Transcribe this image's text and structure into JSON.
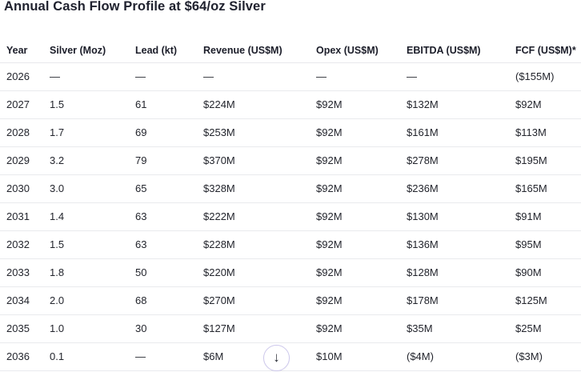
{
  "title": "Annual Cash Flow Profile at $64/oz Silver",
  "table": {
    "columns": [
      "Year",
      "Silver (Moz)",
      "Lead (kt)",
      "Revenue (US$M)",
      "Opex (US$M)",
      "EBITDA (US$M)",
      "FCF (US$M)*"
    ],
    "rows": [
      [
        "2026",
        "—",
        "—",
        "—",
        "—",
        "—",
        "($155M)"
      ],
      [
        "2027",
        "1.5",
        "61",
        "$224M",
        "$92M",
        "$132M",
        "$92M"
      ],
      [
        "2028",
        "1.7",
        "69",
        "$253M",
        "$92M",
        "$161M",
        "$113M"
      ],
      [
        "2029",
        "3.2",
        "79",
        "$370M",
        "$92M",
        "$278M",
        "$195M"
      ],
      [
        "2030",
        "3.0",
        "65",
        "$328M",
        "$92M",
        "$236M",
        "$165M"
      ],
      [
        "2031",
        "1.4",
        "63",
        "$222M",
        "$92M",
        "$130M",
        "$91M"
      ],
      [
        "2032",
        "1.5",
        "63",
        "$228M",
        "$92M",
        "$136M",
        "$95M"
      ],
      [
        "2033",
        "1.8",
        "50",
        "$220M",
        "$92M",
        "$128M",
        "$90M"
      ],
      [
        "2034",
        "2.0",
        "68",
        "$270M",
        "$92M",
        "$178M",
        "$125M"
      ],
      [
        "2035",
        "1.0",
        "30",
        "$127M",
        "$92M",
        "$35M",
        "$25M"
      ],
      [
        "2036",
        "0.1",
        "—",
        "$6M",
        "$10M",
        "($4M)",
        "($3M)"
      ]
    ]
  },
  "scroll_button": {
    "icon": "arrow-down-icon",
    "glyph": "↓"
  },
  "colors": {
    "title_text": "#20222f",
    "header_text": "#1b1d29",
    "cell_text": "#23252d",
    "row_border": "#e9eaee",
    "button_border": "#cdc8ec",
    "background": "#ffffff"
  }
}
